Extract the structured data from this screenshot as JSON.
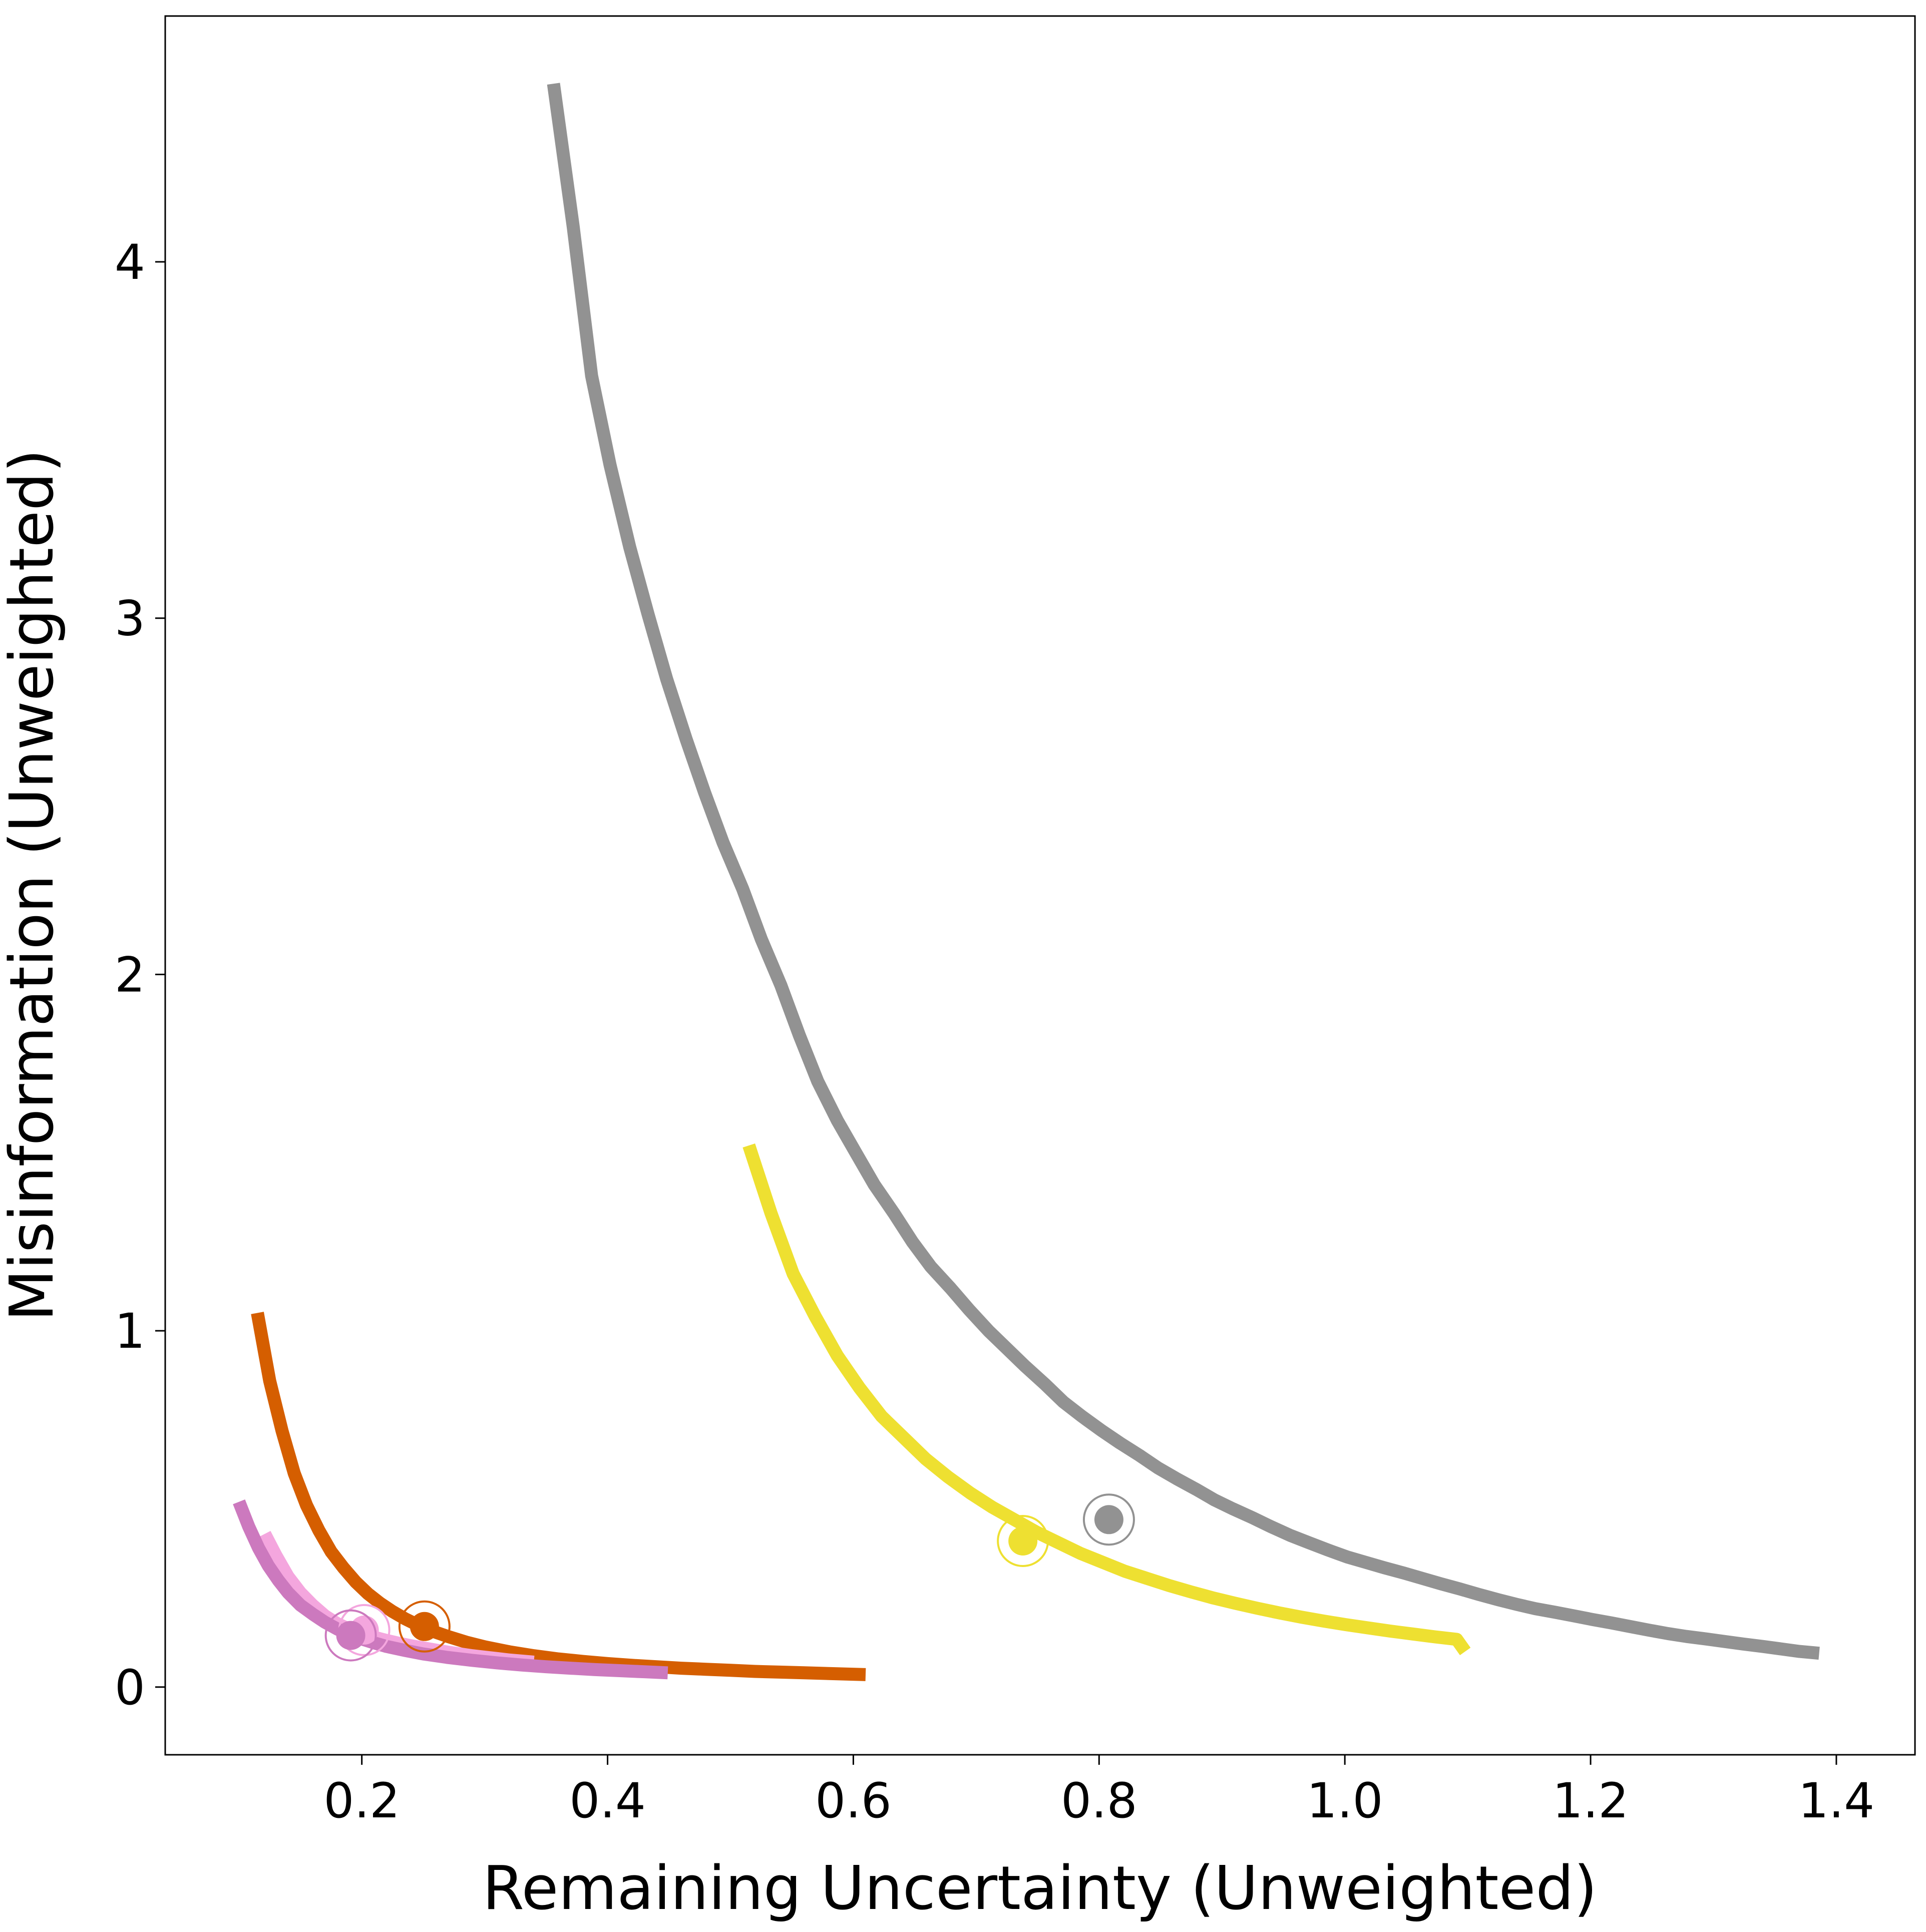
{
  "chart_data": {
    "type": "line",
    "xlabel": "Remaining Uncertainty (Unweighted)",
    "ylabel": "Misinformation (Unweighted)",
    "xlim": [
      0.04,
      1.464
    ],
    "ylim": [
      -0.19,
      4.69
    ],
    "xticks": [
      0.2,
      0.4,
      0.6,
      0.8,
      1.0,
      1.2,
      1.4
    ],
    "xtick_labels": [
      "0.2",
      "0.4",
      "0.6",
      "0.8",
      "1.0",
      "1.2",
      "1.4"
    ],
    "yticks": [
      0,
      1,
      2,
      3,
      4
    ],
    "ytick_labels": [
      "0",
      "1",
      "2",
      "3",
      "4"
    ],
    "grid": false,
    "series": [
      {
        "color": "#929292",
        "points": [
          [
            0.356,
            4.5
          ],
          [
            0.372,
            4.1
          ],
          [
            0.387,
            3.68
          ],
          [
            0.402,
            3.43
          ],
          [
            0.418,
            3.2
          ],
          [
            0.433,
            3.01
          ],
          [
            0.448,
            2.83
          ],
          [
            0.464,
            2.66
          ],
          [
            0.479,
            2.51
          ],
          [
            0.494,
            2.37
          ],
          [
            0.51,
            2.24
          ],
          [
            0.525,
            2.1
          ],
          [
            0.541,
            1.97
          ],
          [
            0.556,
            1.83
          ],
          [
            0.571,
            1.7
          ],
          [
            0.587,
            1.59
          ],
          [
            0.602,
            1.5
          ],
          [
            0.617,
            1.41
          ],
          [
            0.633,
            1.33
          ],
          [
            0.648,
            1.25
          ],
          [
            0.663,
            1.18
          ],
          [
            0.679,
            1.12
          ],
          [
            0.694,
            1.06
          ],
          [
            0.71,
            1.0
          ],
          [
            0.725,
            0.95
          ],
          [
            0.74,
            0.9
          ],
          [
            0.756,
            0.85
          ],
          [
            0.771,
            0.8
          ],
          [
            0.786,
            0.76
          ],
          [
            0.802,
            0.72
          ],
          [
            0.817,
            0.685
          ],
          [
            0.833,
            0.65
          ],
          [
            0.848,
            0.615
          ],
          [
            0.863,
            0.585
          ],
          [
            0.879,
            0.555
          ],
          [
            0.894,
            0.525
          ],
          [
            0.909,
            0.5
          ],
          [
            0.925,
            0.475
          ],
          [
            0.94,
            0.45
          ],
          [
            0.956,
            0.425
          ],
          [
            0.971,
            0.405
          ],
          [
            0.986,
            0.385
          ],
          [
            1.002,
            0.365
          ],
          [
            1.017,
            0.35
          ],
          [
            1.032,
            0.335
          ],
          [
            1.048,
            0.32
          ],
          [
            1.063,
            0.305
          ],
          [
            1.078,
            0.29
          ],
          [
            1.094,
            0.275
          ],
          [
            1.109,
            0.26
          ],
          [
            1.125,
            0.245
          ],
          [
            1.14,
            0.232
          ],
          [
            1.155,
            0.22
          ],
          [
            1.171,
            0.21
          ],
          [
            1.186,
            0.2
          ],
          [
            1.201,
            0.19
          ],
          [
            1.217,
            0.18
          ],
          [
            1.232,
            0.17
          ],
          [
            1.247,
            0.16
          ],
          [
            1.263,
            0.15
          ],
          [
            1.278,
            0.142
          ],
          [
            1.294,
            0.135
          ],
          [
            1.309,
            0.128
          ],
          [
            1.324,
            0.121
          ],
          [
            1.34,
            0.114
          ],
          [
            1.355,
            0.107
          ],
          [
            1.37,
            0.1
          ],
          [
            1.386,
            0.095
          ]
        ],
        "marker": [
          0.808,
          0.47
        ]
      },
      {
        "color": "#eee031",
        "points": [
          [
            0.515,
            1.52
          ],
          [
            0.533,
            1.33
          ],
          [
            0.551,
            1.16
          ],
          [
            0.569,
            1.04
          ],
          [
            0.587,
            0.93
          ],
          [
            0.605,
            0.84
          ],
          [
            0.623,
            0.76
          ],
          [
            0.641,
            0.7
          ],
          [
            0.659,
            0.64
          ],
          [
            0.677,
            0.59
          ],
          [
            0.695,
            0.545
          ],
          [
            0.713,
            0.505
          ],
          [
            0.731,
            0.47
          ],
          [
            0.749,
            0.435
          ],
          [
            0.767,
            0.405
          ],
          [
            0.785,
            0.375
          ],
          [
            0.803,
            0.35
          ],
          [
            0.821,
            0.325
          ],
          [
            0.839,
            0.305
          ],
          [
            0.857,
            0.285
          ],
          [
            0.875,
            0.267
          ],
          [
            0.893,
            0.25
          ],
          [
            0.911,
            0.235
          ],
          [
            0.929,
            0.221
          ],
          [
            0.947,
            0.208
          ],
          [
            0.965,
            0.196
          ],
          [
            0.983,
            0.185
          ],
          [
            1.001,
            0.175
          ],
          [
            1.019,
            0.166
          ],
          [
            1.037,
            0.157
          ],
          [
            1.055,
            0.149
          ],
          [
            1.073,
            0.141
          ],
          [
            1.091,
            0.134
          ],
          [
            1.098,
            0.1
          ]
        ],
        "marker": [
          0.738,
          0.41
        ]
      },
      {
        "color": "#d55e00",
        "points": [
          [
            0.115,
            1.05
          ],
          [
            0.125,
            0.86
          ],
          [
            0.135,
            0.72
          ],
          [
            0.145,
            0.6
          ],
          [
            0.155,
            0.51
          ],
          [
            0.165,
            0.44
          ],
          [
            0.175,
            0.38
          ],
          [
            0.185,
            0.335
          ],
          [
            0.195,
            0.295
          ],
          [
            0.205,
            0.262
          ],
          [
            0.215,
            0.235
          ],
          [
            0.225,
            0.212
          ],
          [
            0.235,
            0.192
          ],
          [
            0.245,
            0.175
          ],
          [
            0.255,
            0.16
          ],
          [
            0.27,
            0.142
          ],
          [
            0.285,
            0.126
          ],
          [
            0.3,
            0.113
          ],
          [
            0.32,
            0.099
          ],
          [
            0.34,
            0.088
          ],
          [
            0.36,
            0.079
          ],
          [
            0.38,
            0.072
          ],
          [
            0.4,
            0.066
          ],
          [
            0.42,
            0.061
          ],
          [
            0.44,
            0.057
          ],
          [
            0.46,
            0.053
          ],
          [
            0.48,
            0.05
          ],
          [
            0.5,
            0.047
          ],
          [
            0.52,
            0.044
          ],
          [
            0.54,
            0.042
          ],
          [
            0.56,
            0.04
          ],
          [
            0.58,
            0.038
          ],
          [
            0.61,
            0.035
          ]
        ],
        "marker": [
          0.251,
          0.17
        ]
      },
      {
        "color": "#f4a6de",
        "points": [
          [
            0.121,
            0.43
          ],
          [
            0.13,
            0.37
          ],
          [
            0.14,
            0.31
          ],
          [
            0.15,
            0.265
          ],
          [
            0.16,
            0.23
          ],
          [
            0.17,
            0.2
          ],
          [
            0.18,
            0.178
          ],
          [
            0.19,
            0.162
          ],
          [
            0.2,
            0.15
          ],
          [
            0.21,
            0.14
          ],
          [
            0.22,
            0.131
          ],
          [
            0.23,
            0.123
          ],
          [
            0.24,
            0.116
          ],
          [
            0.25,
            0.11
          ],
          [
            0.26,
            0.104
          ],
          [
            0.27,
            0.098
          ],
          [
            0.28,
            0.093
          ],
          [
            0.29,
            0.088
          ],
          [
            0.3,
            0.084
          ],
          [
            0.31,
            0.08
          ],
          [
            0.32,
            0.076
          ],
          [
            0.33,
            0.073
          ],
          [
            0.34,
            0.07
          ]
        ],
        "marker": [
          0.202,
          0.16
        ]
      },
      {
        "color": "#cc79be",
        "points": [
          [
            0.1,
            0.52
          ],
          [
            0.108,
            0.45
          ],
          [
            0.116,
            0.39
          ],
          [
            0.124,
            0.34
          ],
          [
            0.132,
            0.3
          ],
          [
            0.14,
            0.265
          ],
          [
            0.15,
            0.23
          ],
          [
            0.16,
            0.205
          ],
          [
            0.17,
            0.182
          ],
          [
            0.18,
            0.163
          ],
          [
            0.19,
            0.148
          ],
          [
            0.2,
            0.135
          ],
          [
            0.21,
            0.124
          ],
          [
            0.22,
            0.114
          ],
          [
            0.235,
            0.103
          ],
          [
            0.25,
            0.093
          ],
          [
            0.27,
            0.083
          ],
          [
            0.29,
            0.075
          ],
          [
            0.31,
            0.068
          ],
          [
            0.33,
            0.062
          ],
          [
            0.35,
            0.057
          ],
          [
            0.37,
            0.053
          ],
          [
            0.39,
            0.049
          ],
          [
            0.41,
            0.046
          ],
          [
            0.43,
            0.043
          ],
          [
            0.449,
            0.04
          ]
        ],
        "marker": [
          0.191,
          0.145
        ]
      }
    ]
  }
}
